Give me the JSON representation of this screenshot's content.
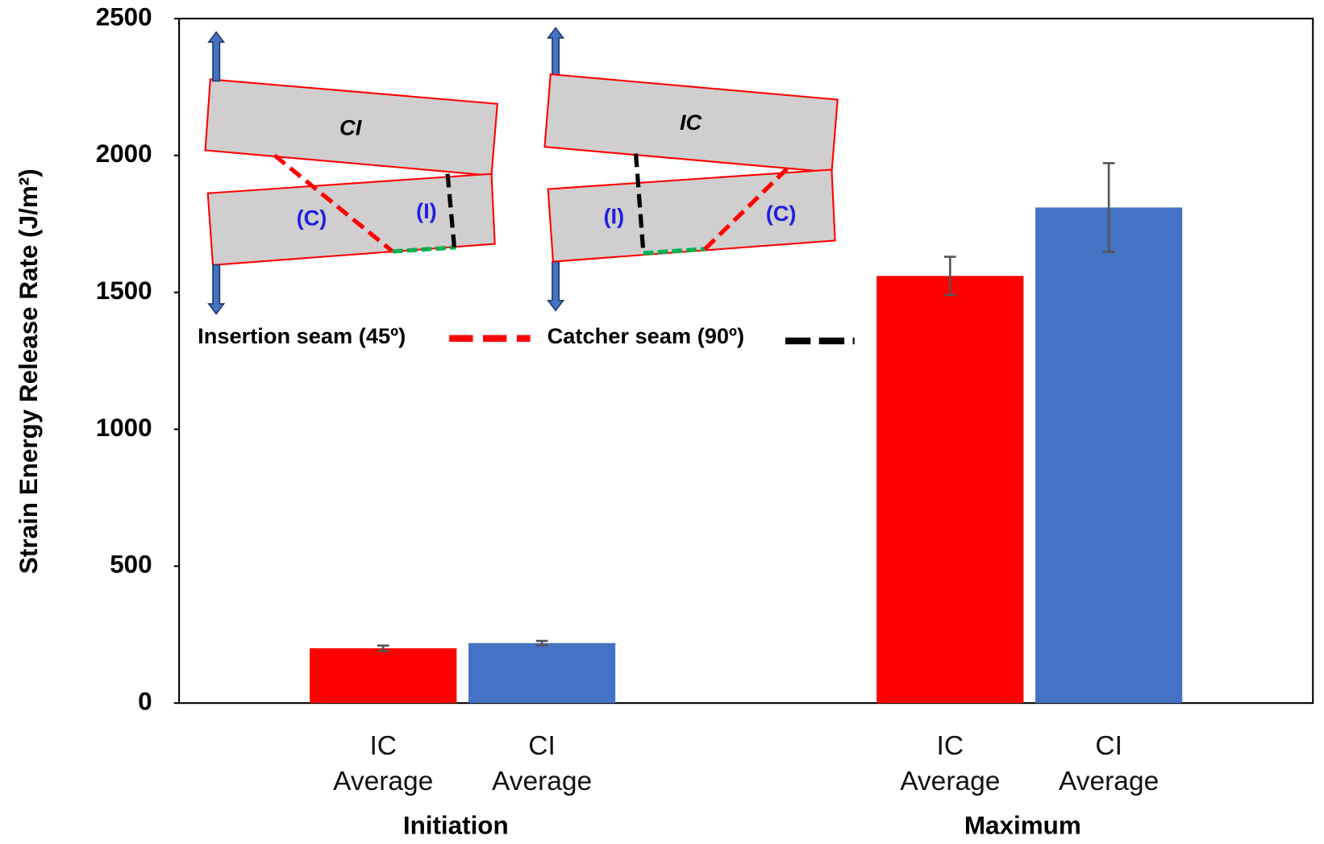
{
  "chart_data": {
    "type": "bar",
    "y_label": "Strain Energy Release Rate (J/m²)",
    "categories": [
      "Initiation",
      "Maximum"
    ],
    "series": [
      {
        "name": "IC Average",
        "color": "#ff0000",
        "values": [
          200,
          1560
        ],
        "errors": [
          10,
          70
        ]
      },
      {
        "name": "CI Average",
        "color": "#4472c4",
        "values": [
          219,
          1810
        ],
        "errors": [
          8,
          162
        ]
      }
    ],
    "ylim": [
      0,
      2500
    ],
    "yticks": [
      0,
      500,
      1000,
      1500,
      2000,
      2500
    ],
    "annotations": {
      "left_specimen": "CI",
      "right_specimen": "IC",
      "catcher_mark": "(C)",
      "insertion_mark": "(I)",
      "insertion_legend": "Insertion seam (45º)",
      "catcher_legend": "Catcher seam (90º)"
    }
  }
}
